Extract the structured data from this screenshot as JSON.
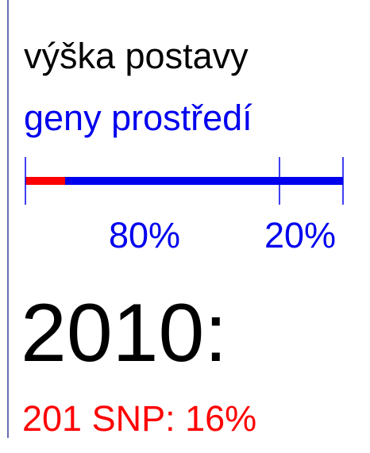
{
  "title": "výška postavy",
  "subtitle": "geny prostředí",
  "bar": {
    "labels": [
      "80%",
      "20%"
    ]
  },
  "year": "2010:",
  "result": "201 SNP: 16%"
}
